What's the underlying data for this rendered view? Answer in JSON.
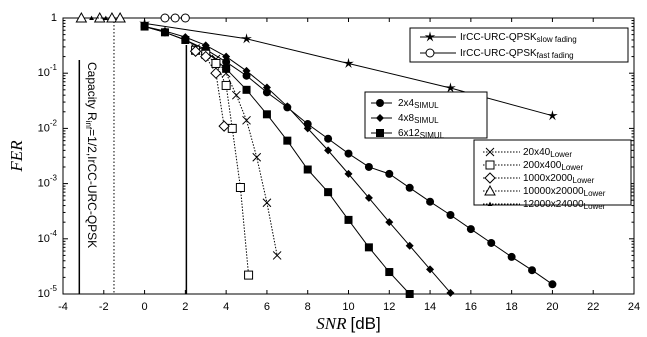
{
  "chart_data": {
    "type": "line",
    "xlabel": "SNR",
    "xlabel_suffix": "[dB]",
    "ylabel": "FER",
    "xlim": [
      -4,
      24
    ],
    "xticks": [
      -4,
      -2,
      0,
      2,
      4,
      6,
      8,
      10,
      12,
      14,
      16,
      18,
      20,
      22,
      24
    ],
    "ylim": [
      1e-05,
      1
    ],
    "log_y": true,
    "yticks": [
      {
        "value": 1e-05,
        "label": "10",
        "exp": "-5"
      },
      {
        "value": 0.0001,
        "label": "10",
        "exp": "-4"
      },
      {
        "value": 0.001,
        "label": "10",
        "exp": "-3"
      },
      {
        "value": 0.01,
        "label": "10",
        "exp": "-2"
      },
      {
        "value": 0.1,
        "label": "10",
        "exp": "-1"
      },
      1
    ],
    "annotation": {
      "text": "Capacity R",
      "sub": "inf",
      "rest": "=1/2,IrCC-URC-QPSK"
    },
    "ref_lines": [
      {
        "x": -3.2,
        "style": "solid"
      },
      {
        "x": -1.5,
        "style": "dotted"
      },
      {
        "x": 2.05,
        "style": "solid"
      }
    ],
    "series": [
      {
        "name": "IrCC-URC-QPSK",
        "name_sub": "slow fading",
        "marker": "star",
        "dash": "solid",
        "color": "#000000",
        "x": [
          0,
          5,
          10,
          15,
          20
        ],
        "values": [
          0.8,
          0.42,
          0.15,
          0.054,
          0.017
        ]
      },
      {
        "name": "IrCC-URC-QPSK",
        "name_sub": "fast fading",
        "marker": "circle-open",
        "dash": "solid",
        "color": "#000000",
        "x": [
          1,
          1.5,
          2
        ],
        "values": [
          1,
          1,
          1
        ]
      },
      {
        "name": "2x4",
        "name_sub": "SIMUL",
        "marker": "circle",
        "dash": "solid",
        "color": "#000000",
        "x": [
          0,
          1,
          2,
          3,
          4,
          5,
          6,
          7,
          8,
          9,
          10,
          11,
          12,
          13,
          14,
          15,
          16,
          17,
          18,
          19,
          20
        ],
        "values": [
          0.7,
          0.55,
          0.4,
          0.27,
          0.16,
          0.09,
          0.045,
          0.024,
          0.012,
          0.0065,
          0.0035,
          0.002,
          0.0015,
          0.00084,
          0.00047,
          0.00027,
          0.00015,
          8.4e-05,
          4.7e-05,
          2.7e-05,
          1.5e-05
        ]
      },
      {
        "name": "4x8",
        "name_sub": "SIMUL",
        "marker": "diamond",
        "dash": "solid",
        "color": "#000000",
        "x": [
          0,
          1,
          2,
          3,
          4,
          5,
          6,
          7,
          8,
          9,
          10,
          11,
          12,
          13,
          14,
          15
        ],
        "values": [
          0.7,
          0.58,
          0.45,
          0.32,
          0.2,
          0.11,
          0.055,
          0.025,
          0.01,
          0.004,
          0.0015,
          0.00055,
          0.0002,
          7.5e-05,
          2.8e-05,
          1.05e-05
        ]
      },
      {
        "name": "6x12",
        "name_sub": "SIMUL",
        "marker": "square",
        "dash": "solid",
        "color": "#000000",
        "x": [
          0,
          1,
          2,
          3,
          4,
          5,
          6,
          7,
          8,
          9,
          10,
          11,
          12,
          13
        ],
        "values": [
          0.7,
          0.55,
          0.4,
          0.25,
          0.12,
          0.05,
          0.018,
          0.006,
          0.0018,
          0.0007,
          0.00022,
          7e-05,
          2.5e-05,
          1e-05
        ]
      },
      {
        "name": "20x40",
        "name_sub": "Lower",
        "marker": "x",
        "dash": "dotted",
        "color": "#000000",
        "x": [
          2.5,
          3,
          3.5,
          4,
          4.5,
          5,
          5.5,
          6,
          6.5
        ],
        "values": [
          0.28,
          0.25,
          0.18,
          0.1,
          0.04,
          0.014,
          0.003,
          0.00045,
          5e-05
        ]
      },
      {
        "name": "200x400",
        "name_sub": "Lower",
        "marker": "square-open",
        "dash": "dotted",
        "color": "#000000",
        "x": [
          2.5,
          3,
          3.5,
          4,
          4.3,
          4.7,
          5.1
        ],
        "values": [
          0.26,
          0.22,
          0.15,
          0.06,
          0.01,
          0.00085,
          2.2e-05
        ]
      },
      {
        "name": "1000x2000",
        "name_sub": "Lower",
        "marker": "diamond-open",
        "dash": "dotted",
        "color": "#000000",
        "x": [
          2.5,
          3,
          3.5,
          3.9
        ],
        "values": [
          0.25,
          0.2,
          0.1,
          0.011
        ]
      },
      {
        "name": "10000x20000",
        "name_sub": "Lower",
        "marker": "triangle-open",
        "dash": "dotted",
        "color": "#000000",
        "x": [
          -3.1,
          -2.2,
          -1.6,
          -1.2
        ],
        "values": [
          1,
          1,
          1,
          1
        ]
      },
      {
        "name": "12000x24000",
        "name_sub": "Lower",
        "marker": "triangle",
        "dash": "dotted",
        "color": "#000000",
        "x": [
          -2.6,
          -1.9
        ],
        "values": [
          1,
          1
        ]
      }
    ]
  }
}
